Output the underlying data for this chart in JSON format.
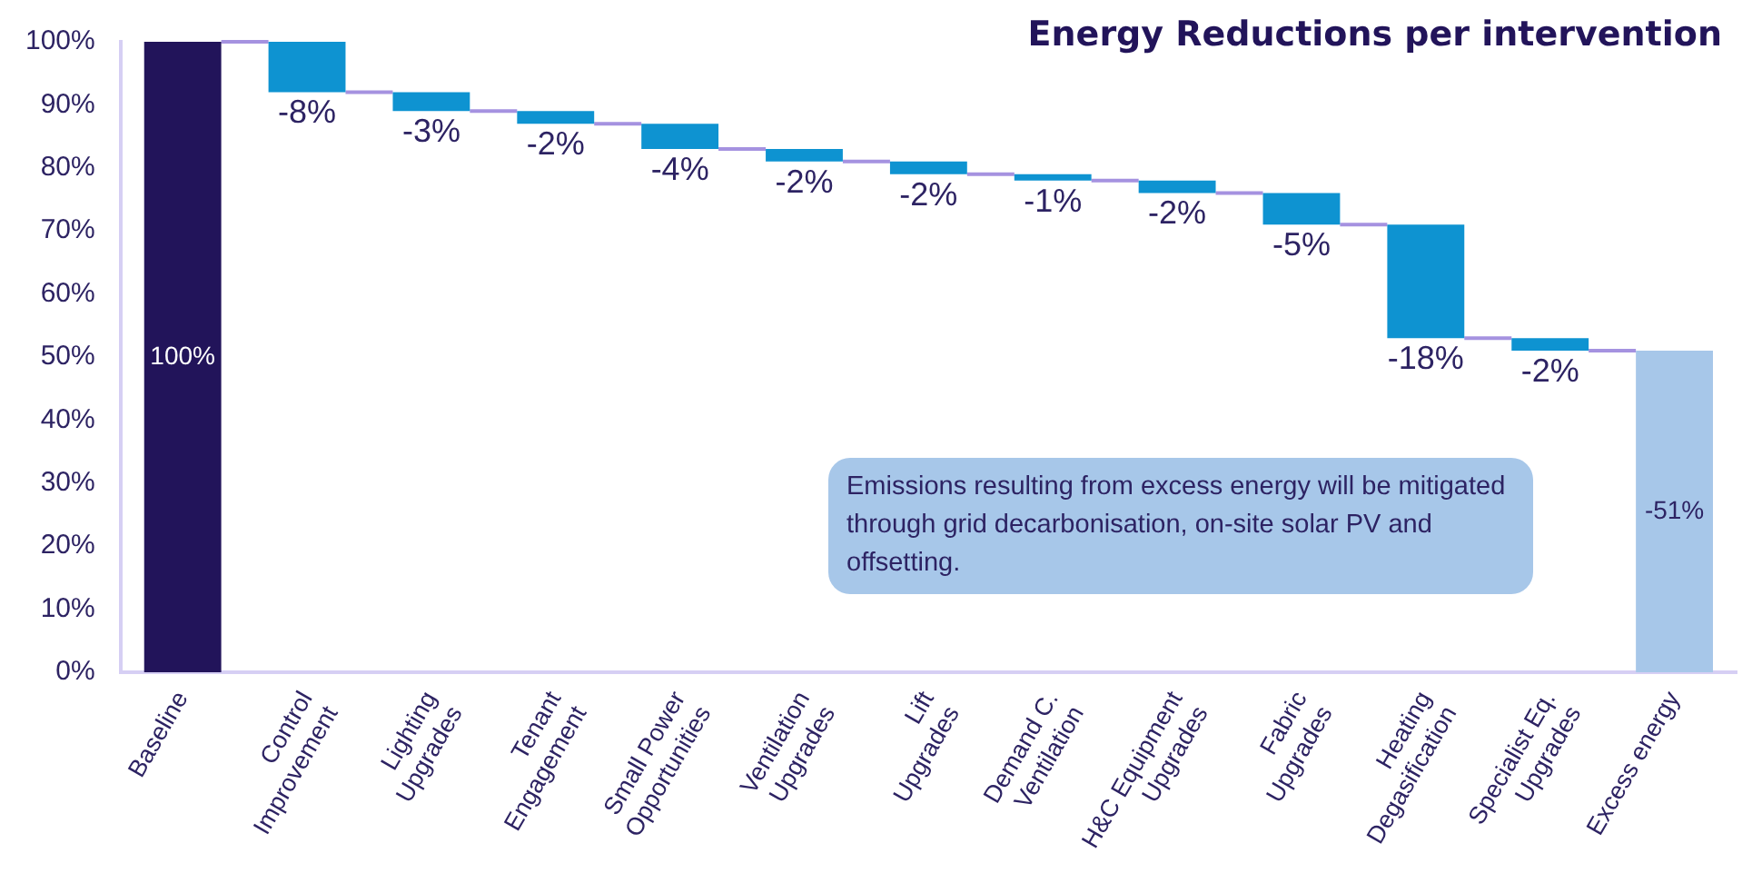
{
  "chart_data": {
    "type": "bar",
    "title": "Energy Reductions per intervention",
    "categories": [
      "Baseline",
      "Control\nImprovement",
      "Lighting\nUpgrades",
      "Tenant\nEngagement",
      "Small Power\nOpportunities",
      "Ventilation\nUpgrades",
      "Lift\nUpgrades",
      "Demand C.\nVentilation",
      "H&C Equipment\nUpgrades",
      "Fabric\nUpgrades",
      "Heating\nDegasification",
      "Specialist Eq.\nUpgrades",
      "Excess energy"
    ],
    "values": [
      100,
      -8,
      -3,
      -2,
      -4,
      -2,
      -2,
      -1,
      -2,
      -5,
      -18,
      -2,
      -51
    ],
    "base": [
      0,
      100,
      92,
      89,
      87,
      83,
      81,
      79,
      78,
      76,
      71,
      53,
      51
    ],
    "colors": [
      "#22145a",
      "#0e93d1",
      "#0e93d1",
      "#0e93d1",
      "#0e93d1",
      "#0e93d1",
      "#0e93d1",
      "#0e93d1",
      "#0e93d1",
      "#0e93d1",
      "#0e93d1",
      "#0e93d1",
      "#a7c7e9"
    ],
    "value_labels": [
      "100%",
      "-8%",
      "-3%",
      "-2%",
      "-4%",
      "-2%",
      "-2%",
      "-1%",
      "-2%",
      "-5%",
      "-18%",
      "-2%",
      "-51%"
    ],
    "ylim": [
      0,
      100
    ],
    "yticks": [
      {
        "value": 0,
        "label": "0%"
      },
      {
        "value": 10,
        "label": "10%"
      },
      {
        "value": 20,
        "label": "20%"
      },
      {
        "value": 30,
        "label": "30%"
      },
      {
        "value": 40,
        "label": "40%"
      },
      {
        "value": 50,
        "label": "50%"
      },
      {
        "value": 60,
        "label": "60%"
      },
      {
        "value": 70,
        "label": "70%"
      },
      {
        "value": 80,
        "label": "80%"
      },
      {
        "value": 90,
        "label": "90%"
      },
      {
        "value": 100,
        "label": "100%"
      }
    ],
    "annotations": [
      "Emissions resulting from excess energy will be mitigated through grid decarbonisation, on-site solar PV and offsetting."
    ],
    "grid": false,
    "legend": false
  }
}
